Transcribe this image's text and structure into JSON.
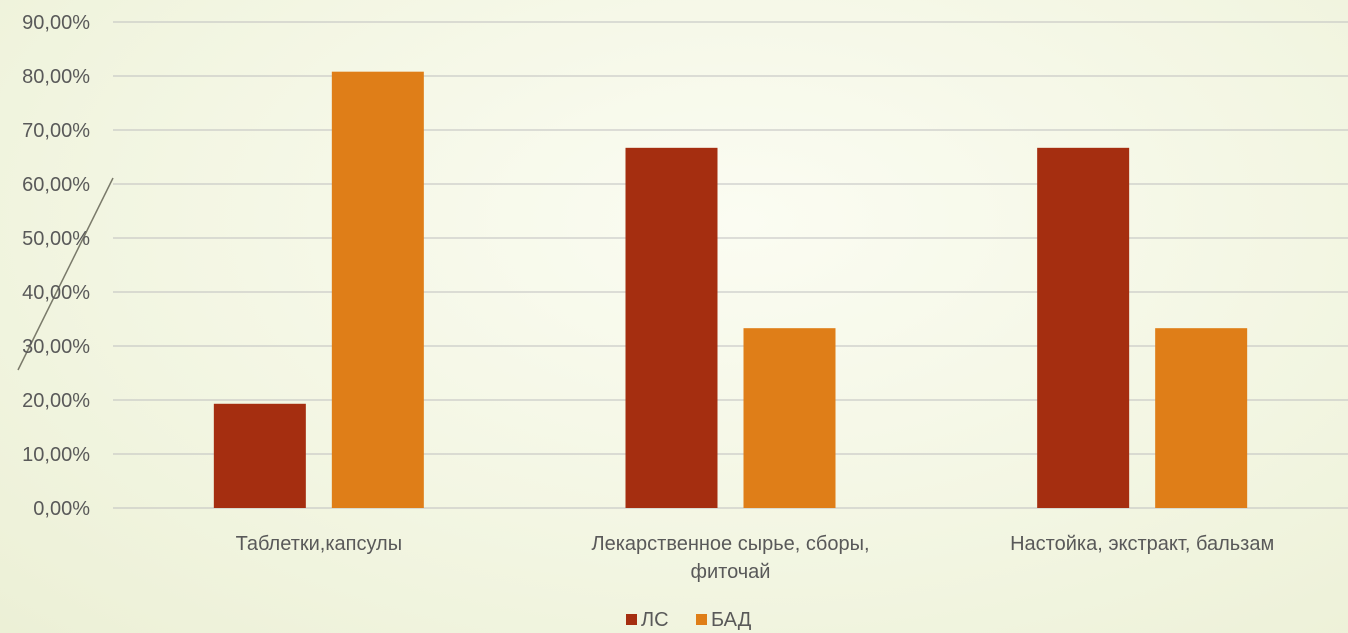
{
  "chart_data": {
    "type": "bar",
    "categories": [
      "Таблетки,капсулы",
      "Лекарственное сырье, сборы, фиточай",
      "Настойка, экстракт, бальзам"
    ],
    "category_lines": [
      [
        "Таблетки,капсулы"
      ],
      [
        "Лекарственное сырье, сборы,",
        "фиточай"
      ],
      [
        "Настойка, экстракт, бальзам"
      ]
    ],
    "series": [
      {
        "name": "ЛС",
        "values": [
          19.3,
          66.7,
          66.7
        ],
        "color": "#a52e10"
      },
      {
        "name": "БАД",
        "values": [
          80.8,
          33.3,
          33.3
        ],
        "color": "#df7e18"
      }
    ],
    "y_ticks": [
      "0,00%",
      "10,00%",
      "20,00%",
      "30,00%",
      "40,00%",
      "50,00%",
      "60,00%",
      "70,00%",
      "80,00%",
      "90,00%"
    ],
    "ylim": [
      0,
      90
    ],
    "grid": true,
    "legend": "bottom",
    "title": "",
    "xlabel": "",
    "ylabel": ""
  }
}
